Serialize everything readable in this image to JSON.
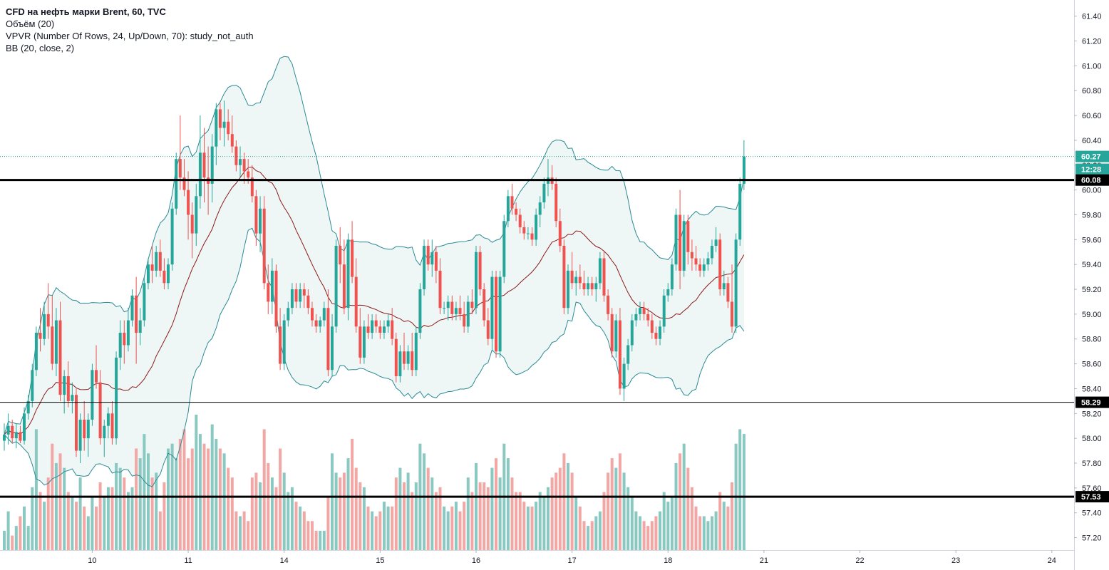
{
  "legend": {
    "symbol": "CFD на нефть марки Brent, 60, TVC",
    "volume": "Объём (20)",
    "vpvr": "VPVR (Number Of Rows, 24, Up/Down, 70): study_not_auth",
    "bb": "BB (20, close, 2)"
  },
  "colors": {
    "up": "#26a69a",
    "down": "#ef5350",
    "up_volume": "#89c9c2",
    "down_volume": "#f2a7a5",
    "bb_band": "#2b8a94",
    "bb_basis": "#8b1a1a",
    "bb_fill": "#eef6f6",
    "last_price": "#26a69a"
  },
  "chart_data": {
    "type": "candlestick",
    "symbol": "CFD на нефть марки Brent",
    "interval": "60",
    "ylim": [
      57.1,
      61.53
    ],
    "y_ticks": [
      "61.40",
      "61.20",
      "61.00",
      "60.80",
      "60.60",
      "60.40",
      "60.20",
      "60.00",
      "59.80",
      "59.60",
      "59.40",
      "59.20",
      "59.00",
      "58.80",
      "58.60",
      "58.40",
      "58.20",
      "58.00",
      "57.80",
      "57.60",
      "57.40",
      "57.20"
    ],
    "x_ticks": [
      {
        "label": "10",
        "bar": 22
      },
      {
        "label": "11",
        "bar": 46
      },
      {
        "label": "14",
        "bar": 70
      },
      {
        "label": "15",
        "bar": 94
      },
      {
        "label": "16",
        "bar": 118
      },
      {
        "label": "17",
        "bar": 142
      },
      {
        "label": "18",
        "bar": 166
      },
      {
        "label": "21",
        "bar": 190
      },
      {
        "label": "22",
        "bar": 214
      },
      {
        "label": "23",
        "bar": 238
      },
      {
        "label": "24",
        "bar": 262
      }
    ],
    "bars": [
      [
        57.98,
        58.12,
        57.9,
        58.03,
        4
      ],
      [
        58.03,
        58.2,
        57.95,
        58.1,
        8
      ],
      [
        58.1,
        58.15,
        57.96,
        58.0,
        3
      ],
      [
        58.0,
        58.12,
        57.92,
        58.05,
        5
      ],
      [
        58.05,
        58.1,
        57.96,
        57.98,
        7
      ],
      [
        57.98,
        58.25,
        57.95,
        58.2,
        9
      ],
      [
        58.2,
        58.35,
        58.15,
        58.3,
        5
      ],
      [
        58.3,
        58.6,
        58.25,
        58.55,
        13
      ],
      [
        58.55,
        58.9,
        58.5,
        58.85,
        25
      ],
      [
        58.85,
        59.05,
        58.7,
        58.8,
        12
      ],
      [
        58.8,
        59.1,
        58.75,
        59.0,
        10
      ],
      [
        59.0,
        59.25,
        58.8,
        58.9,
        15
      ],
      [
        58.9,
        59.15,
        58.55,
        58.6,
        22
      ],
      [
        58.6,
        59.05,
        58.5,
        58.95,
        18
      ],
      [
        58.95,
        59.1,
        58.3,
        58.35,
        20
      ],
      [
        58.35,
        58.55,
        58.2,
        58.5,
        17
      ],
      [
        58.5,
        58.62,
        58.25,
        58.3,
        12
      ],
      [
        58.3,
        58.45,
        58.2,
        58.35,
        11
      ],
      [
        58.35,
        58.4,
        57.85,
        57.9,
        10
      ],
      [
        57.9,
        58.2,
        57.8,
        58.15,
        15
      ],
      [
        58.15,
        58.3,
        57.9,
        58.0,
        9
      ],
      [
        58.0,
        58.2,
        57.85,
        58.15,
        7
      ],
      [
        58.15,
        58.6,
        58.1,
        58.55,
        11
      ],
      [
        58.55,
        58.75,
        58.4,
        58.45,
        9
      ],
      [
        58.45,
        58.55,
        57.95,
        58.0,
        14
      ],
      [
        58.0,
        58.15,
        57.85,
        58.1,
        11
      ],
      [
        58.1,
        58.25,
        58.0,
        58.2,
        13
      ],
      [
        58.2,
        58.3,
        57.95,
        58.0,
        13
      ],
      [
        58.0,
        58.7,
        57.95,
        58.65,
        18
      ],
      [
        58.65,
        58.95,
        58.55,
        58.85,
        17
      ],
      [
        58.85,
        58.95,
        58.6,
        58.75,
        15
      ],
      [
        58.75,
        59.05,
        58.7,
        58.95,
        12
      ],
      [
        58.95,
        59.2,
        58.9,
        59.15,
        13
      ],
      [
        59.15,
        59.3,
        58.6,
        58.85,
        21
      ],
      [
        58.85,
        59.05,
        58.75,
        58.95,
        19
      ],
      [
        58.95,
        59.3,
        58.9,
        59.25,
        24
      ],
      [
        59.25,
        59.45,
        59.2,
        59.4,
        20
      ],
      [
        59.4,
        59.55,
        59.25,
        59.35,
        15
      ],
      [
        59.35,
        59.55,
        59.3,
        59.5,
        16
      ],
      [
        59.5,
        59.6,
        59.3,
        59.35,
        8
      ],
      [
        59.35,
        59.45,
        59.2,
        59.25,
        14
      ],
      [
        59.25,
        59.45,
        59.2,
        59.4,
        21
      ],
      [
        59.4,
        59.9,
        59.35,
        59.85,
        22
      ],
      [
        59.85,
        60.3,
        59.8,
        60.25,
        19
      ],
      [
        60.25,
        60.6,
        60.0,
        60.1,
        23
      ],
      [
        60.1,
        60.25,
        59.95,
        60.0,
        25
      ],
      [
        60.0,
        60.15,
        59.6,
        59.8,
        19
      ],
      [
        59.8,
        59.9,
        59.45,
        59.65,
        21
      ],
      [
        59.65,
        60.05,
        59.55,
        59.95,
        28
      ],
      [
        59.95,
        60.6,
        59.85,
        60.3,
        24
      ],
      [
        60.3,
        60.5,
        59.9,
        60.1,
        22
      ],
      [
        60.1,
        60.35,
        59.8,
        60.05,
        21
      ],
      [
        60.05,
        60.45,
        59.9,
        60.35,
        26
      ],
      [
        60.35,
        60.7,
        60.2,
        60.65,
        23
      ],
      [
        60.65,
        60.7,
        60.4,
        60.5,
        21
      ],
      [
        60.5,
        60.72,
        60.35,
        60.55,
        20
      ],
      [
        60.55,
        60.65,
        60.4,
        60.45,
        17
      ],
      [
        60.45,
        60.6,
        60.3,
        60.35,
        15
      ],
      [
        60.35,
        60.4,
        60.15,
        60.2,
        8
      ],
      [
        60.2,
        60.35,
        60.1,
        60.25,
        7
      ],
      [
        60.25,
        60.3,
        60.05,
        60.15,
        8
      ],
      [
        60.15,
        60.25,
        60.05,
        60.1,
        6
      ],
      [
        60.1,
        60.2,
        59.9,
        59.95,
        15
      ],
      [
        59.95,
        60.0,
        59.55,
        59.65,
        16
      ],
      [
        59.65,
        59.95,
        59.5,
        59.85,
        14
      ],
      [
        59.85,
        59.95,
        59.2,
        59.25,
        25
      ],
      [
        59.25,
        59.4,
        59.0,
        59.1,
        18
      ],
      [
        59.1,
        59.45,
        59.0,
        59.35,
        15
      ],
      [
        59.35,
        59.4,
        58.85,
        58.9,
        13
      ],
      [
        58.9,
        59.05,
        58.55,
        58.6,
        21
      ],
      [
        58.6,
        59.0,
        58.55,
        58.95,
        16
      ],
      [
        58.95,
        59.1,
        58.9,
        59.05,
        12
      ],
      [
        59.05,
        59.25,
        59.0,
        59.2,
        13
      ],
      [
        59.2,
        59.25,
        59.05,
        59.1,
        10
      ],
      [
        59.1,
        59.25,
        59.05,
        59.2,
        9
      ],
      [
        59.2,
        59.25,
        59.05,
        59.15,
        8
      ],
      [
        59.15,
        59.2,
        59.0,
        59.05,
        6
      ],
      [
        59.05,
        59.1,
        58.9,
        58.95,
        6
      ],
      [
        58.95,
        59.0,
        58.85,
        58.9,
        4
      ],
      [
        58.9,
        58.98,
        58.85,
        58.95,
        4
      ],
      [
        58.95,
        59.1,
        58.9,
        59.05,
        4
      ],
      [
        59.05,
        59.2,
        58.5,
        58.55,
        11
      ],
      [
        58.55,
        59.0,
        58.5,
        58.9,
        20
      ],
      [
        58.9,
        59.6,
        58.85,
        59.55,
        16
      ],
      [
        59.55,
        59.7,
        59.25,
        59.4,
        15
      ],
      [
        59.4,
        59.6,
        59.0,
        59.05,
        16
      ],
      [
        59.05,
        59.65,
        58.95,
        59.6,
        19
      ],
      [
        59.6,
        59.75,
        59.25,
        59.3,
        23
      ],
      [
        59.3,
        59.45,
        58.85,
        58.9,
        17
      ],
      [
        58.9,
        59.05,
        58.6,
        58.65,
        14
      ],
      [
        58.65,
        58.95,
        58.6,
        58.9,
        13
      ],
      [
        58.9,
        59.0,
        58.8,
        58.85,
        9
      ],
      [
        58.85,
        59.0,
        58.8,
        58.95,
        8
      ],
      [
        58.95,
        59.0,
        58.85,
        58.9,
        7
      ],
      [
        58.9,
        58.95,
        58.8,
        58.85,
        8
      ],
      [
        58.85,
        58.95,
        58.8,
        58.9,
        10
      ],
      [
        58.9,
        59.0,
        58.85,
        58.95,
        9
      ],
      [
        58.95,
        59.05,
        58.75,
        58.8,
        9
      ],
      [
        58.8,
        58.85,
        58.45,
        58.5,
        15
      ],
      [
        58.5,
        58.75,
        58.45,
        58.7,
        17
      ],
      [
        58.7,
        58.85,
        58.55,
        58.6,
        14
      ],
      [
        58.6,
        58.75,
        58.55,
        58.7,
        16
      ],
      [
        58.7,
        58.85,
        58.5,
        58.55,
        12
      ],
      [
        58.55,
        58.9,
        58.5,
        58.85,
        14
      ],
      [
        58.85,
        59.25,
        58.8,
        59.2,
        22
      ],
      [
        59.2,
        59.6,
        59.15,
        59.55,
        20
      ],
      [
        59.55,
        59.6,
        59.35,
        59.4,
        17
      ],
      [
        59.4,
        59.6,
        59.3,
        59.5,
        15
      ],
      [
        59.5,
        59.55,
        59.25,
        59.35,
        12
      ],
      [
        59.35,
        59.45,
        59.0,
        59.05,
        13
      ],
      [
        59.05,
        59.1,
        59.0,
        59.05,
        9
      ],
      [
        59.05,
        59.15,
        58.95,
        59.1,
        8
      ],
      [
        59.1,
        59.15,
        58.95,
        59.0,
        9
      ],
      [
        59.0,
        59.1,
        58.95,
        59.05,
        10
      ],
      [
        59.05,
        59.15,
        58.95,
        59.0,
        8
      ],
      [
        59.0,
        59.1,
        58.85,
        58.9,
        10
      ],
      [
        58.9,
        59.15,
        58.85,
        59.1,
        15
      ],
      [
        59.1,
        59.2,
        59.0,
        59.05,
        12
      ],
      [
        59.05,
        59.55,
        59.0,
        59.5,
        18
      ],
      [
        59.5,
        59.55,
        59.15,
        59.2,
        14
      ],
      [
        59.2,
        59.25,
        58.9,
        58.95,
        14
      ],
      [
        58.95,
        59.05,
        58.75,
        58.8,
        13
      ],
      [
        58.8,
        59.35,
        58.7,
        59.3,
        17
      ],
      [
        59.3,
        59.35,
        58.65,
        58.7,
        19
      ],
      [
        58.7,
        59.35,
        58.65,
        59.3,
        15
      ],
      [
        59.3,
        59.8,
        59.25,
        59.75,
        22
      ],
      [
        59.75,
        60.0,
        59.7,
        59.95,
        19
      ],
      [
        59.95,
        60.05,
        59.8,
        59.85,
        15
      ],
      [
        59.85,
        59.9,
        59.75,
        59.8,
        12
      ],
      [
        59.8,
        59.85,
        59.65,
        59.7,
        12
      ],
      [
        59.7,
        59.75,
        59.6,
        59.65,
        10
      ],
      [
        59.65,
        59.7,
        59.6,
        59.65,
        9
      ],
      [
        59.65,
        59.7,
        59.55,
        59.6,
        9
      ],
      [
        59.6,
        59.85,
        59.55,
        59.8,
        10
      ],
      [
        59.8,
        59.95,
        59.7,
        59.9,
        12
      ],
      [
        59.9,
        60.1,
        59.85,
        60.05,
        11
      ],
      [
        60.05,
        60.25,
        59.95,
        60.1,
        13
      ],
      [
        60.1,
        60.2,
        60.0,
        60.05,
        15
      ],
      [
        60.05,
        60.1,
        59.7,
        59.75,
        16
      ],
      [
        59.75,
        59.85,
        59.5,
        59.55,
        17
      ],
      [
        59.55,
        59.6,
        59.0,
        59.05,
        20
      ],
      [
        59.05,
        59.4,
        59.0,
        59.35,
        18
      ],
      [
        59.35,
        59.5,
        59.2,
        59.25,
        16
      ],
      [
        59.25,
        59.35,
        59.15,
        59.3,
        11
      ],
      [
        59.3,
        59.4,
        59.2,
        59.25,
        9
      ],
      [
        59.25,
        59.35,
        59.15,
        59.2,
        6
      ],
      [
        59.2,
        59.3,
        59.15,
        59.25,
        5
      ],
      [
        59.25,
        59.3,
        59.15,
        59.2,
        6
      ],
      [
        59.2,
        59.3,
        59.1,
        59.25,
        7
      ],
      [
        59.25,
        59.5,
        59.2,
        59.45,
        8
      ],
      [
        59.45,
        59.5,
        59.1,
        59.15,
        12
      ],
      [
        59.15,
        59.2,
        58.95,
        59.0,
        16
      ],
      [
        59.0,
        59.05,
        58.65,
        58.7,
        19
      ],
      [
        58.7,
        59.0,
        58.65,
        58.95,
        17
      ],
      [
        58.95,
        59.05,
        58.35,
        58.4,
        20
      ],
      [
        58.4,
        58.65,
        58.3,
        58.6,
        16
      ],
      [
        58.6,
        58.8,
        58.55,
        58.75,
        13
      ],
      [
        58.75,
        59.0,
        58.7,
        58.95,
        11
      ],
      [
        58.95,
        59.05,
        58.9,
        59.0,
        8
      ],
      [
        59.0,
        59.1,
        58.95,
        59.05,
        7
      ],
      [
        59.05,
        59.1,
        58.95,
        59.0,
        6
      ],
      [
        59.0,
        59.05,
        58.9,
        58.95,
        5
      ],
      [
        58.95,
        59.0,
        58.8,
        58.85,
        6
      ],
      [
        58.85,
        58.9,
        58.75,
        58.8,
        7
      ],
      [
        58.8,
        58.95,
        58.75,
        58.9,
        8
      ],
      [
        58.9,
        59.2,
        58.85,
        59.15,
        12
      ],
      [
        59.15,
        59.25,
        59.1,
        59.2,
        10
      ],
      [
        59.2,
        59.45,
        59.15,
        59.4,
        11
      ],
      [
        59.4,
        59.85,
        59.35,
        59.8,
        18
      ],
      [
        59.8,
        60.0,
        59.2,
        59.35,
        20
      ],
      [
        59.35,
        59.8,
        59.3,
        59.75,
        22
      ],
      [
        59.75,
        59.8,
        59.4,
        59.5,
        17
      ],
      [
        59.5,
        59.6,
        59.35,
        59.45,
        13
      ],
      [
        59.45,
        59.55,
        59.35,
        59.4,
        9
      ],
      [
        59.4,
        59.45,
        59.3,
        59.35,
        7
      ],
      [
        59.35,
        59.45,
        59.3,
        59.4,
        7
      ],
      [
        59.4,
        59.5,
        59.35,
        59.45,
        6
      ],
      [
        59.45,
        59.6,
        59.4,
        59.55,
        7
      ],
      [
        59.55,
        59.7,
        59.5,
        59.6,
        8
      ],
      [
        59.6,
        59.65,
        59.15,
        59.2,
        12
      ],
      [
        59.2,
        59.35,
        59.15,
        59.25,
        10
      ],
      [
        59.25,
        59.3,
        59.05,
        59.1,
        9
      ],
      [
        59.1,
        59.4,
        58.85,
        58.9,
        14
      ],
      [
        58.9,
        59.65,
        58.85,
        59.6,
        22
      ],
      [
        59.6,
        60.1,
        59.55,
        60.05,
        25
      ],
      [
        60.05,
        60.4,
        60.0,
        60.27,
        24
      ]
    ],
    "horizontal_levels": [
      {
        "price": 60.08,
        "label": "60.08",
        "style": "thick"
      },
      {
        "price": 58.29,
        "label": "58.29",
        "style": "thin"
      },
      {
        "price": 57.53,
        "label": "57.53",
        "style": "thick"
      }
    ],
    "last_price": {
      "value": 60.27,
      "label": "60.27",
      "countdown": "12:28"
    }
  }
}
